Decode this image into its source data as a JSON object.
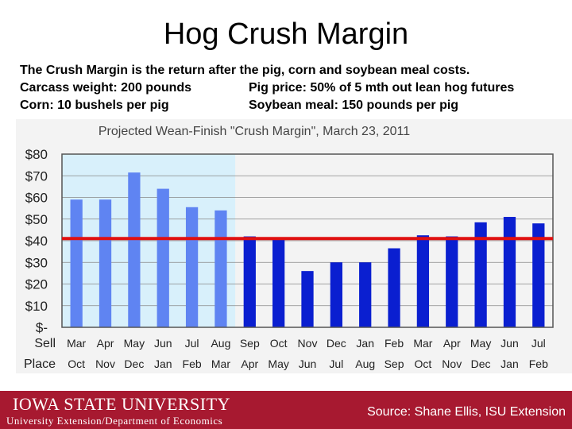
{
  "slide": {
    "title": "Hog Crush Margin",
    "line1": "The Crush Margin is the return after the pig, corn and soybean meal costs.",
    "line2_left": "Carcass weight:  200 pounds",
    "line2_right": "Pig price:  50% of 5 mth out lean hog futures",
    "line3_left": "Corn:  10 bushels per pig",
    "line3_right": "Soybean meal:  150 pounds per pig"
  },
  "footer": {
    "university": "Iowa State University",
    "department": "University Extension/Department of Economics",
    "source": "Source: Shane Ellis, ISU Extension",
    "bg_color": "#a71930"
  },
  "chart_data": {
    "type": "bar",
    "title": "Projected Wean-Finish \"Crush Margin\", March 23, 2011",
    "row_labels": [
      "Sell",
      "Place"
    ],
    "categories": [
      "Mar",
      "Apr",
      "May",
      "Jun",
      "Jul",
      "Aug",
      "Sep",
      "Oct",
      "Nov",
      "Dec",
      "Jan",
      "Feb",
      "Mar",
      "Apr",
      "May",
      "Jun",
      "Jul"
    ],
    "categories_place": [
      "Oct",
      "Nov",
      "Dec",
      "Jan",
      "Feb",
      "Mar",
      "Apr",
      "May",
      "Jun",
      "Jul",
      "Aug",
      "Sep",
      "Oct",
      "Nov",
      "Dec",
      "Jan",
      "Feb"
    ],
    "values": [
      59,
      59,
      71.5,
      64,
      55.5,
      54,
      42,
      41,
      26,
      30,
      30,
      36.5,
      42.5,
      42,
      48.5,
      51,
      48
    ],
    "historical_count": 6,
    "yticks": [
      "$80",
      "$70",
      "$60",
      "$50",
      "$40",
      "$30",
      "$20",
      "$10",
      "$-"
    ],
    "ylim": [
      0,
      80
    ],
    "reference_value": 41,
    "colors": {
      "historical_bar": "#5f84f2",
      "projected_bar": "#0a1fd0",
      "reference_line": "#e01010",
      "historical_bg": "#d8f0fb"
    }
  }
}
